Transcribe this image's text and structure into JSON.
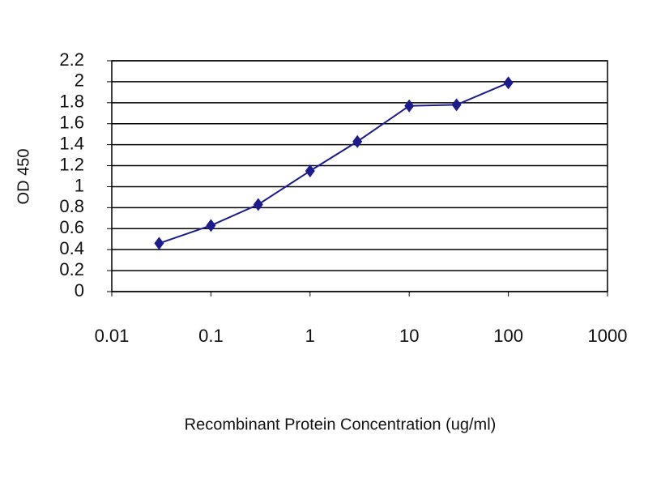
{
  "chart_data": {
    "type": "line",
    "x_label": "Recombinant Protein Concentration (ug/ml)",
    "y_label": "OD 450",
    "x": [
      0.03,
      0.1,
      0.3,
      1,
      3,
      10,
      30,
      100
    ],
    "series": [
      {
        "name": null,
        "color": "#1c1c8e",
        "values": [
          0.46,
          0.63,
          0.83,
          1.15,
          1.43,
          1.77,
          1.78,
          1.99
        ]
      }
    ],
    "xlim": [
      0.01,
      1000
    ],
    "xticks": [
      0.01,
      0.1,
      1,
      10,
      100,
      1000
    ],
    "xlog": true,
    "ylim": [
      0,
      2.2
    ],
    "yticks": [
      0,
      0.2,
      0.4,
      0.6,
      0.8,
      1,
      1.2,
      1.4,
      1.6,
      1.8,
      2,
      2.2
    ],
    "grid": true
  }
}
